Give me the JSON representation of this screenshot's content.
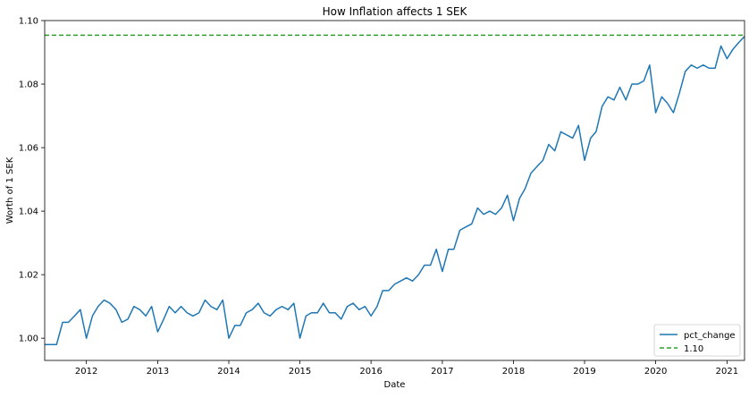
{
  "chart_data": {
    "type": "line",
    "title": "How Inflation affects 1 SEK",
    "xlabel": "Date",
    "ylabel": "Worth of 1 SEK",
    "xlim": [
      "2011-06-01",
      "2021-04-01"
    ],
    "ylim": [
      0.993,
      1.1
    ],
    "x_ticks": [
      "2012",
      "2013",
      "2014",
      "2015",
      "2016",
      "2017",
      "2018",
      "2019",
      "2020",
      "2021"
    ],
    "y_ticks": [
      "1.00",
      "1.02",
      "1.04",
      "1.06",
      "1.08",
      "1.10"
    ],
    "y_tick_values": [
      1.0,
      1.02,
      1.04,
      1.06,
      1.08,
      1.1
    ],
    "grid": false,
    "legend_position": "lower-right",
    "series": [
      {
        "name": "pct_change",
        "color": "#1f77b4",
        "style": "solid",
        "start": "2011-06",
        "values": [
          0.998,
          0.998,
          0.998,
          1.005,
          1.005,
          1.007,
          1.009,
          1.0,
          1.007,
          1.01,
          1.012,
          1.011,
          1.009,
          1.005,
          1.006,
          1.01,
          1.009,
          1.007,
          1.01,
          1.002,
          1.006,
          1.01,
          1.008,
          1.01,
          1.008,
          1.007,
          1.008,
          1.012,
          1.01,
          1.009,
          1.012,
          1.0,
          1.004,
          1.004,
          1.008,
          1.009,
          1.011,
          1.008,
          1.007,
          1.009,
          1.01,
          1.009,
          1.011,
          1.0,
          1.007,
          1.008,
          1.008,
          1.011,
          1.008,
          1.008,
          1.006,
          1.01,
          1.011,
          1.009,
          1.01,
          1.007,
          1.01,
          1.015,
          1.015,
          1.017,
          1.018,
          1.019,
          1.018,
          1.02,
          1.023,
          1.023,
          1.028,
          1.021,
          1.028,
          1.028,
          1.034,
          1.035,
          1.036,
          1.041,
          1.039,
          1.04,
          1.039,
          1.041,
          1.045,
          1.037,
          1.044,
          1.047,
          1.052,
          1.054,
          1.056,
          1.061,
          1.059,
          1.065,
          1.064,
          1.063,
          1.067,
          1.056,
          1.063,
          1.065,
          1.073,
          1.076,
          1.075,
          1.079,
          1.075,
          1.08,
          1.08,
          1.081,
          1.086,
          1.071,
          1.076,
          1.074,
          1.071,
          1.077,
          1.084,
          1.086,
          1.085,
          1.086,
          1.085,
          1.085,
          1.092,
          1.088,
          1.091,
          1.093,
          1.095
        ]
      },
      {
        "name": "1.10",
        "color": "#2ca02c",
        "style": "dashed",
        "y": 1.0954
      }
    ]
  }
}
